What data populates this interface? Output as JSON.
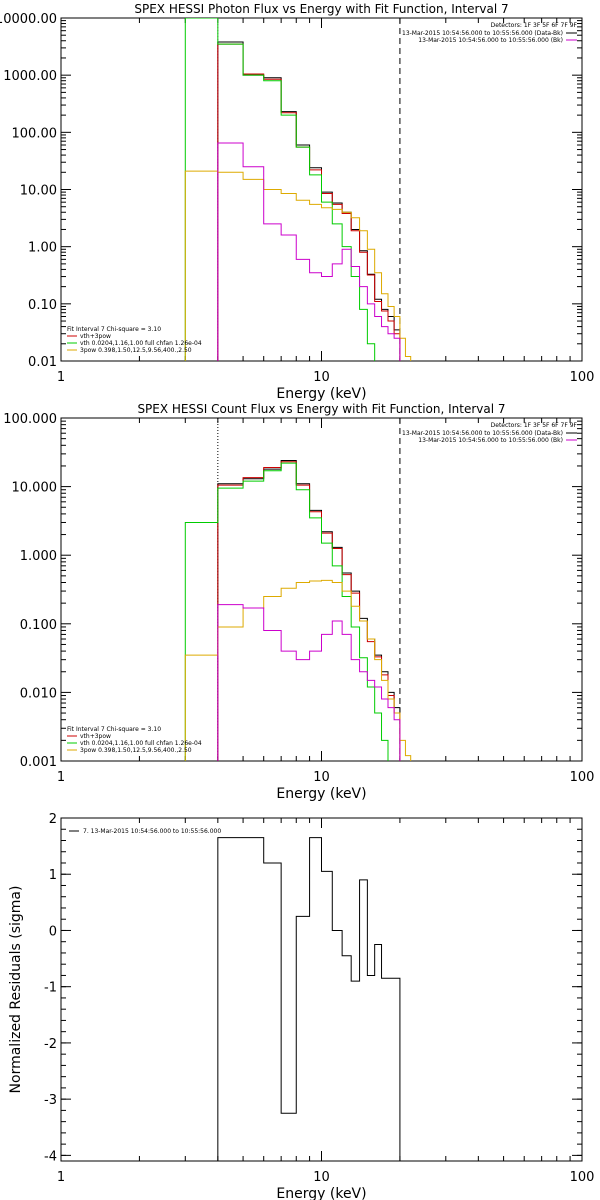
{
  "chart_data": [
    {
      "type": "line",
      "title": "SPEX HESSI Photon Flux vs Energy with Fit Function, Interval 7",
      "xlabel": "Energy (keV)",
      "ylabel": "",
      "xscale": "log",
      "yscale": "log",
      "xlim": [
        1,
        100
      ],
      "ylim": [
        0.01,
        10000
      ],
      "xticks": [
        {
          "v": 1,
          "label": "1"
        },
        {
          "v": 10,
          "label": "10"
        },
        {
          "v": 100,
          "label": "100"
        }
      ],
      "yticks": [
        {
          "v": 0.01,
          "label": "0.01"
        },
        {
          "v": 0.1,
          "label": "0.10"
        },
        {
          "v": 1,
          "label": "1.00"
        },
        {
          "v": 10,
          "label": "10.00"
        },
        {
          "v": 100,
          "label": "100.00"
        },
        {
          "v": 1000,
          "label": "1000.00"
        },
        {
          "v": 10000,
          "label": "10000.00"
        }
      ],
      "legend_upper": {
        "header": "Detectors: 1F 3F 5F 6F 7F 9F",
        "entries": [
          {
            "text": "13-Mar-2015 10:54:56.000 to 10:55:56.000 (Data-Bk)",
            "color": "#000000"
          },
          {
            "text": "13-Mar-2015 10:54:56.000 to 10:55:56.000 (Bk)",
            "color": "#cc00cc"
          }
        ]
      },
      "legend_lower": {
        "header": "Fit Interval 7   Chi-square = 3.10",
        "entries": [
          {
            "text": "vth+3pow",
            "color": "#cc0000"
          },
          {
            "text": "vth 0.0204,1.16,1.00  full chfan 1.26e-04",
            "color": "#00cc00"
          },
          {
            "text": "3pow 0.398,1.50,12.5,9.56,400.,2.50",
            "color": "#ddaa00"
          }
        ]
      },
      "vlines": [
        {
          "x": 4,
          "color": "#cc00cc",
          "style": "dotted"
        },
        {
          "x": 20,
          "color": "#000000",
          "style": "dashed"
        }
      ],
      "series": [
        {
          "name": "Data-Bk",
          "color": "#000000",
          "edges": [
            4,
            5,
            6,
            7,
            8,
            9,
            10,
            11,
            12,
            13,
            14,
            15,
            16,
            17,
            18,
            19,
            20
          ],
          "values": [
            3800,
            1000,
            900,
            230,
            60,
            24,
            9,
            5.8,
            4,
            2,
            0.85,
            0.33,
            0.12,
            0.08,
            0.06,
            0.035
          ]
        },
        {
          "name": "vth+3pow",
          "color": "#cc0000",
          "edges": [
            4,
            5,
            6,
            7,
            8,
            9,
            10,
            11,
            12,
            13,
            14,
            15,
            16,
            17,
            18,
            19,
            20
          ],
          "values": [
            3500,
            1050,
            850,
            220,
            55,
            22,
            8.5,
            5.5,
            3.8,
            1.9,
            0.8,
            0.32,
            0.11,
            0.075,
            0.05,
            0.03
          ]
        },
        {
          "name": "vth",
          "color": "#00cc00",
          "edges": [
            3,
            4,
            5,
            6,
            7,
            8,
            9,
            10,
            11,
            12,
            13,
            14,
            15,
            16
          ],
          "values": [
            10000,
            3500,
            1000,
            800,
            200,
            55,
            18,
            6,
            2.5,
            1,
            0.3,
            0.08,
            0.02
          ]
        },
        {
          "name": "3pow",
          "color": "#ddaa00",
          "edges": [
            3,
            4,
            5,
            6,
            7,
            8,
            9,
            10,
            11,
            12,
            13,
            14,
            15,
            16,
            17,
            18,
            19,
            20,
            21,
            22
          ],
          "values": [
            21,
            20,
            15,
            10,
            8.5,
            6.5,
            5.5,
            4.8,
            4.5,
            4,
            3.2,
            1.9,
            0.9,
            0.35,
            0.15,
            0.09,
            0.06,
            0.025,
            0.012
          ]
        },
        {
          "name": "Bk",
          "color": "#cc00cc",
          "edges": [
            4,
            5,
            6,
            7,
            8,
            9,
            10,
            11,
            12,
            13,
            14,
            15,
            16,
            17,
            18,
            19,
            20
          ],
          "values": [
            65,
            25,
            2.5,
            1.6,
            0.6,
            0.35,
            0.3,
            0.5,
            0.9,
            0.45,
            0.2,
            0.1,
            0.06,
            0.04,
            0.03,
            0.025
          ]
        }
      ]
    },
    {
      "type": "line",
      "title": "SPEX HESSI Count Flux vs Energy with Fit Function, Interval 7",
      "xlabel": "Energy (keV)",
      "ylabel": "",
      "xscale": "log",
      "yscale": "log",
      "xlim": [
        1,
        100
      ],
      "ylim": [
        0.001,
        100
      ],
      "xticks": [
        {
          "v": 1,
          "label": "1"
        },
        {
          "v": 10,
          "label": "10"
        },
        {
          "v": 100,
          "label": "100"
        }
      ],
      "yticks": [
        {
          "v": 0.001,
          "label": "0.001"
        },
        {
          "v": 0.01,
          "label": "0.010"
        },
        {
          "v": 0.1,
          "label": "0.100"
        },
        {
          "v": 1,
          "label": "1.000"
        },
        {
          "v": 10,
          "label": "10.000"
        },
        {
          "v": 100,
          "label": "100.000"
        }
      ],
      "legend_upper": {
        "header": "Detectors: 1F 3F 5F 6F 7F 9F",
        "entries": [
          {
            "text": "13-Mar-2015 10:54:56.000 to 10:55:56.000 (Data-Bk)",
            "color": "#000000"
          },
          {
            "text": "13-Mar-2015 10:54:56.000 to 10:55:56.000 (Bk)",
            "color": "#cc00cc"
          }
        ]
      },
      "legend_lower": {
        "header": "Fit Interval 7   Chi-square = 3.10",
        "entries": [
          {
            "text": "vth+3pow",
            "color": "#cc0000"
          },
          {
            "text": "vth 0.0204,1.16,1.00  full chfan 1.26e-04",
            "color": "#00cc00"
          },
          {
            "text": "3pow 0.398,1.50,12.5,9.56,400.,2.50",
            "color": "#ddaa00"
          }
        ]
      },
      "vlines": [
        {
          "x": 4,
          "color": "#000000",
          "style": "dotted"
        },
        {
          "x": 20,
          "color": "#000000",
          "style": "dashed"
        }
      ],
      "series": [
        {
          "name": "Data-Bk",
          "color": "#000000",
          "edges": [
            4,
            5,
            6,
            7,
            8,
            9,
            10,
            11,
            12,
            13,
            14,
            15,
            16,
            17,
            18,
            19,
            20
          ],
          "values": [
            11,
            13,
            18,
            24,
            11,
            4.5,
            2.2,
            1.3,
            0.55,
            0.3,
            0.12,
            0.06,
            0.035,
            0.02,
            0.01,
            0.006
          ]
        },
        {
          "name": "vth+3pow",
          "color": "#cc0000",
          "edges": [
            4,
            5,
            6,
            7,
            8,
            9,
            10,
            11,
            12,
            13,
            14,
            15,
            16,
            17,
            18,
            19,
            20
          ],
          "values": [
            10.5,
            13.5,
            19,
            23,
            10.5,
            4.3,
            2.1,
            1.25,
            0.52,
            0.28,
            0.11,
            0.055,
            0.033,
            0.018,
            0.009,
            0.005
          ]
        },
        {
          "name": "vth",
          "color": "#00cc00",
          "edges": [
            3,
            4,
            5,
            6,
            7,
            8,
            9,
            10,
            11,
            12,
            13,
            14,
            15,
            16,
            17,
            18
          ],
          "values": [
            3,
            9.5,
            12,
            17,
            22,
            9,
            3.5,
            1.5,
            0.7,
            0.25,
            0.09,
            0.032,
            0.012,
            0.005,
            0.002
          ]
        },
        {
          "name": "3pow",
          "color": "#ddaa00",
          "edges": [
            3,
            4,
            5,
            6,
            7,
            8,
            9,
            10,
            11,
            12,
            13,
            14,
            15,
            16,
            17,
            18,
            19,
            20,
            21,
            22
          ],
          "values": [
            0.035,
            0.09,
            0.17,
            0.25,
            0.33,
            0.4,
            0.42,
            0.43,
            0.4,
            0.3,
            0.18,
            0.11,
            0.06,
            0.03,
            0.015,
            0.008,
            0.005,
            0.002,
            0.0012
          ]
        },
        {
          "name": "Bk",
          "color": "#cc00cc",
          "edges": [
            4,
            5,
            6,
            7,
            8,
            9,
            10,
            11,
            12,
            13,
            14,
            15,
            16,
            17,
            18,
            19,
            20
          ],
          "values": [
            0.19,
            0.17,
            0.08,
            0.04,
            0.03,
            0.04,
            0.07,
            0.11,
            0.07,
            0.03,
            0.02,
            0.015,
            0.012,
            0.008,
            0.006,
            0.004
          ]
        }
      ]
    },
    {
      "type": "line",
      "title": "",
      "xlabel": "Energy (keV)",
      "ylabel": "Normalized Residuals (sigma)",
      "xscale": "log",
      "yscale": "linear",
      "xlim": [
        1,
        100
      ],
      "ylim": [
        -4.1,
        2
      ],
      "xticks": [
        {
          "v": 1,
          "label": "1"
        },
        {
          "v": 10,
          "label": "10"
        },
        {
          "v": 100,
          "label": "100"
        }
      ],
      "yticks": [
        {
          "v": -4,
          "label": "-4"
        },
        {
          "v": -3,
          "label": "-3"
        },
        {
          "v": -2,
          "label": "-2"
        },
        {
          "v": -1,
          "label": "-1"
        },
        {
          "v": 0,
          "label": "0"
        },
        {
          "v": 1,
          "label": "1"
        },
        {
          "v": 2,
          "label": "2"
        }
      ],
      "legend_upper": {
        "header": "",
        "entries": [
          {
            "text": "7. 13-Mar-2015 10:54:56.000 to 10:55:56.000",
            "color": "#000000"
          }
        ]
      },
      "vlines": [],
      "series": [
        {
          "name": "residuals",
          "color": "#000000",
          "edges": [
            4,
            5,
            6,
            7,
            8,
            9,
            10,
            11,
            12,
            13,
            14,
            15,
            16,
            17,
            18,
            19,
            20
          ],
          "values": [
            1.65,
            1.65,
            1.2,
            -3.25,
            0.25,
            1.65,
            1.05,
            0,
            -0.45,
            -0.9,
            0.9,
            -0.8,
            -0.25,
            -0.85,
            -0.85,
            -0.85
          ],
          "drop_to_floor": true
        }
      ]
    }
  ]
}
